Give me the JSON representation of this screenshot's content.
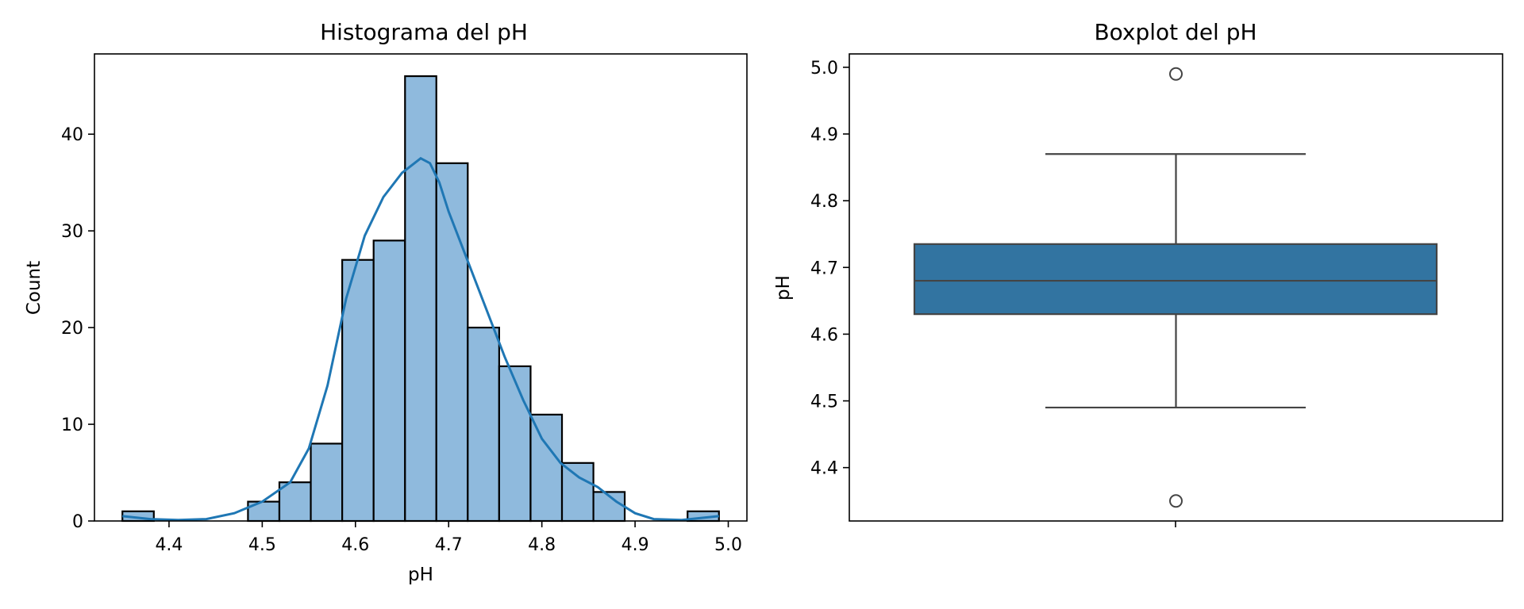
{
  "chart_data": [
    {
      "type": "histogram",
      "title": "Histograma del pH",
      "xlabel": "pH",
      "ylabel": "Count",
      "xlim": [
        4.32,
        5.02
      ],
      "ylim": [
        0,
        48.3
      ],
      "xticks": [
        "4.4",
        "4.5",
        "4.6",
        "4.7",
        "4.8",
        "4.9",
        "5.0"
      ],
      "yticks": [
        "0",
        "10",
        "20",
        "30",
        "40"
      ],
      "bin_edges": [
        4.35,
        4.3837,
        4.4174,
        4.4511,
        4.4847,
        4.5184,
        4.5521,
        4.5858,
        4.6195,
        4.6532,
        4.6868,
        4.7205,
        4.7542,
        4.7879,
        4.8216,
        4.8553,
        4.8889,
        4.9226,
        4.9563,
        4.99
      ],
      "counts": [
        1,
        0,
        0,
        0,
        2,
        4,
        8,
        27,
        29,
        46,
        37,
        20,
        16,
        11,
        6,
        3,
        0,
        0,
        1
      ],
      "kde": {
        "x": [
          4.35,
          4.38,
          4.41,
          4.44,
          4.47,
          4.5,
          4.53,
          4.55,
          4.57,
          4.59,
          4.61,
          4.63,
          4.65,
          4.67,
          4.68,
          4.69,
          4.7,
          4.72,
          4.74,
          4.76,
          4.78,
          4.8,
          4.82,
          4.84,
          4.86,
          4.88,
          4.9,
          4.92,
          4.95,
          4.99
        ],
        "y": [
          0.5,
          0.2,
          0.1,
          0.2,
          0.8,
          2.0,
          4.0,
          7.5,
          14.0,
          23.0,
          29.5,
          33.5,
          36.0,
          37.5,
          37.0,
          35.0,
          32.0,
          27.0,
          22.0,
          17.0,
          12.5,
          8.5,
          6.0,
          4.5,
          3.5,
          2.0,
          0.8,
          0.2,
          0.1,
          0.5
        ]
      },
      "colors": {
        "bar_fill": "#8fbadd",
        "bar_edge": "#000000",
        "kde_line": "#1f77b4"
      }
    },
    {
      "type": "boxplot",
      "title": "Boxplot del pH",
      "ylabel": "pH",
      "ylim": [
        4.32,
        5.02
      ],
      "yticks": [
        "4.4",
        "4.5",
        "4.6",
        "4.7",
        "4.8",
        "4.9",
        "5.0"
      ],
      "q1": 4.63,
      "median": 4.68,
      "q3": 4.735,
      "whisker_low": 4.49,
      "whisker_high": 4.87,
      "outliers": [
        4.99,
        4.35
      ],
      "colors": {
        "box_fill": "#3274a1",
        "box_edge": "#444444"
      }
    }
  ]
}
